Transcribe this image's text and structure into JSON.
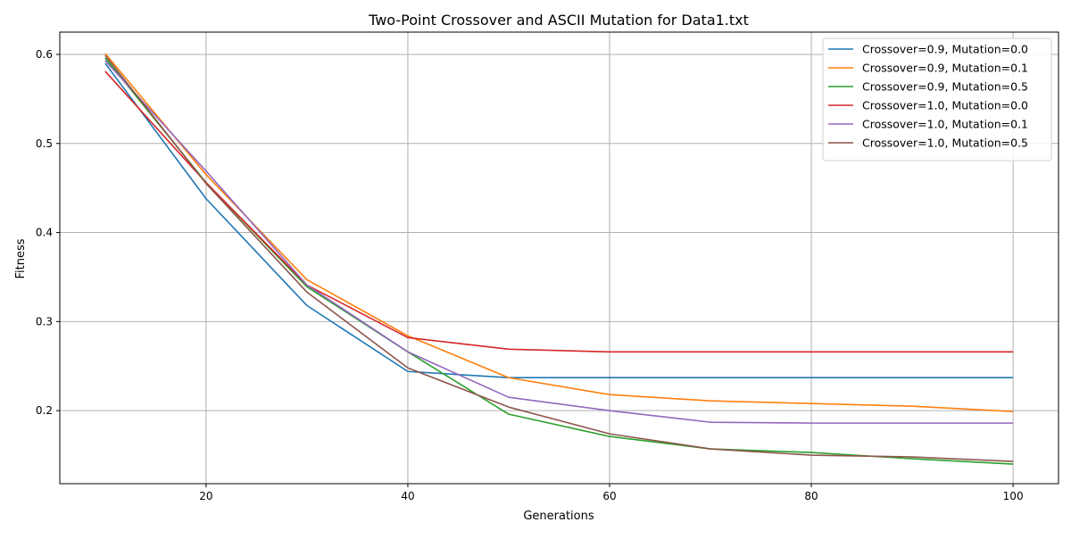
{
  "chart_data": {
    "type": "line",
    "title": "Two-Point Crossover and ASCII Mutation for Data1.txt",
    "xlabel": "Generations",
    "ylabel": "Fitness",
    "xlim": [
      5.5,
      104.5
    ],
    "ylim": [
      0.118,
      0.625
    ],
    "xticks": [
      20,
      40,
      60,
      80,
      100
    ],
    "yticks": [
      0.2,
      0.3,
      0.4,
      0.5,
      0.6
    ],
    "grid": true,
    "legend_position": "top-right",
    "x": [
      10,
      20,
      30,
      40,
      50,
      60,
      70,
      80,
      90,
      100
    ],
    "series": [
      {
        "name": "Crossover=0.9, Mutation=0.0",
        "color": "#1f77b4",
        "values": [
          0.59,
          0.438,
          0.318,
          0.244,
          0.237,
          0.237,
          0.237,
          0.237,
          0.237,
          0.237
        ]
      },
      {
        "name": "Crossover=0.9, Mutation=0.1",
        "color": "#ff7f0e",
        "values": [
          0.601,
          0.465,
          0.347,
          0.284,
          0.237,
          0.218,
          0.211,
          0.208,
          0.205,
          0.199
        ]
      },
      {
        "name": "Crossover=0.9, Mutation=0.5",
        "color": "#2ca02c",
        "values": [
          0.596,
          0.456,
          0.339,
          0.266,
          0.196,
          0.171,
          0.157,
          0.153,
          0.146,
          0.14
        ]
      },
      {
        "name": "Crossover=1.0, Mutation=0.0",
        "color": "#d62728",
        "values": [
          0.581,
          0.456,
          0.341,
          0.282,
          0.269,
          0.266,
          0.266,
          0.266,
          0.266,
          0.266
        ]
      },
      {
        "name": "Crossover=1.0, Mutation=0.1",
        "color": "#9467bd",
        "values": [
          0.593,
          0.469,
          0.341,
          0.266,
          0.215,
          0.2,
          0.187,
          0.186,
          0.186,
          0.186
        ]
      },
      {
        "name": "Crossover=1.0, Mutation=0.5",
        "color": "#8c564b",
        "values": [
          0.599,
          0.455,
          0.333,
          0.248,
          0.204,
          0.174,
          0.157,
          0.15,
          0.148,
          0.143
        ]
      }
    ]
  }
}
